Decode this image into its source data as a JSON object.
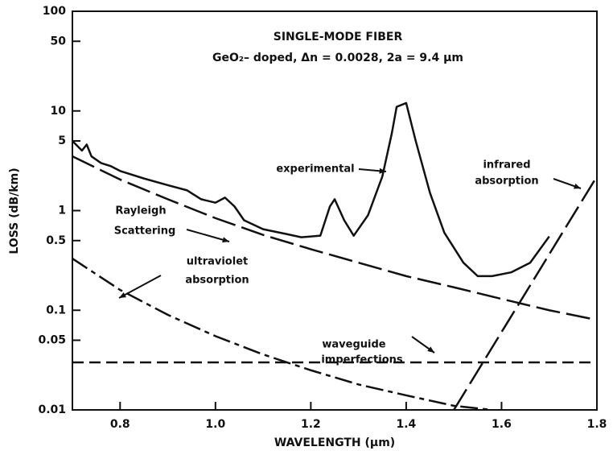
{
  "chart_data": {
    "type": "line",
    "title": "SINGLE-MODE FIBER",
    "subtitle": "GeO₂– doped, Δn = 0.0028, 2a = 9.4 μm",
    "x_label": "WAVELENGTH (μm)",
    "y_label": "LOSS (dB/km)",
    "log_y": true,
    "xlim": [
      0.7,
      1.8
    ],
    "ylim": [
      0.01,
      100
    ],
    "xticks": [
      0.8,
      {
        "value": 1,
        "label": "1.0"
      },
      1.2,
      1.4,
      1.6,
      1.8
    ],
    "yticks": [
      0.01,
      0.05,
      0.1,
      0.5,
      1,
      5,
      10,
      50,
      100
    ],
    "annotations": [
      "experimental",
      "Rayleigh",
      "Scattering",
      "ultraviolet",
      "absorption",
      "waveguide",
      "imperfections",
      "infrared",
      "absorption"
    ],
    "series": [
      {
        "color": "#111",
        "style": "solid",
        "x": [
          0.7,
          0.72,
          0.73,
          0.74,
          0.76,
          0.78,
          0.8,
          0.85,
          0.9,
          0.94,
          0.97,
          1.0,
          1.02,
          1.04,
          1.06,
          1.1,
          1.15,
          1.18,
          1.22,
          1.24,
          1.25,
          1.27,
          1.29,
          1.32,
          1.35,
          1.37,
          1.38,
          1.4,
          1.42,
          1.45,
          1.48,
          1.52,
          1.55,
          1.58,
          1.62,
          1.66,
          1.7
        ],
        "values": [
          5.0,
          4.0,
          4.6,
          3.5,
          3.0,
          2.8,
          2.5,
          2.1,
          1.8,
          1.6,
          1.3,
          1.2,
          1.35,
          1.1,
          0.8,
          0.65,
          0.58,
          0.54,
          0.56,
          1.1,
          1.3,
          0.8,
          0.56,
          0.9,
          2.2,
          6,
          11,
          12,
          5,
          1.5,
          0.6,
          0.3,
          0.22,
          0.22,
          0.24,
          0.3,
          0.55
        ]
      },
      {
        "color": "#111",
        "style": "long-dash",
        "x": [
          0.7,
          0.8,
          0.9,
          1.0,
          1.1,
          1.2,
          1.3,
          1.4,
          1.5,
          1.6,
          1.7,
          1.8
        ],
        "values": [
          3.5,
          2.05,
          1.3,
          0.84,
          0.57,
          0.41,
          0.3,
          0.22,
          0.17,
          0.13,
          0.1,
          0.08
        ]
      },
      {
        "color": "#111",
        "style": "dash-dot",
        "x": [
          0.7,
          0.8,
          0.9,
          1.0,
          1.1,
          1.2,
          1.3,
          1.4,
          1.5,
          1.58
        ],
        "values": [
          0.33,
          0.16,
          0.09,
          0.055,
          0.036,
          0.025,
          0.018,
          0.014,
          0.011,
          0.01
        ]
      },
      {
        "color": "#111",
        "style": "dashed",
        "x": [
          0.7,
          1.8
        ],
        "values": [
          0.03,
          0.03
        ]
      },
      {
        "color": "#111",
        "style": "long-dash",
        "x": [
          1.5,
          1.8
        ],
        "values": [
          0.01,
          2.2
        ]
      }
    ]
  }
}
